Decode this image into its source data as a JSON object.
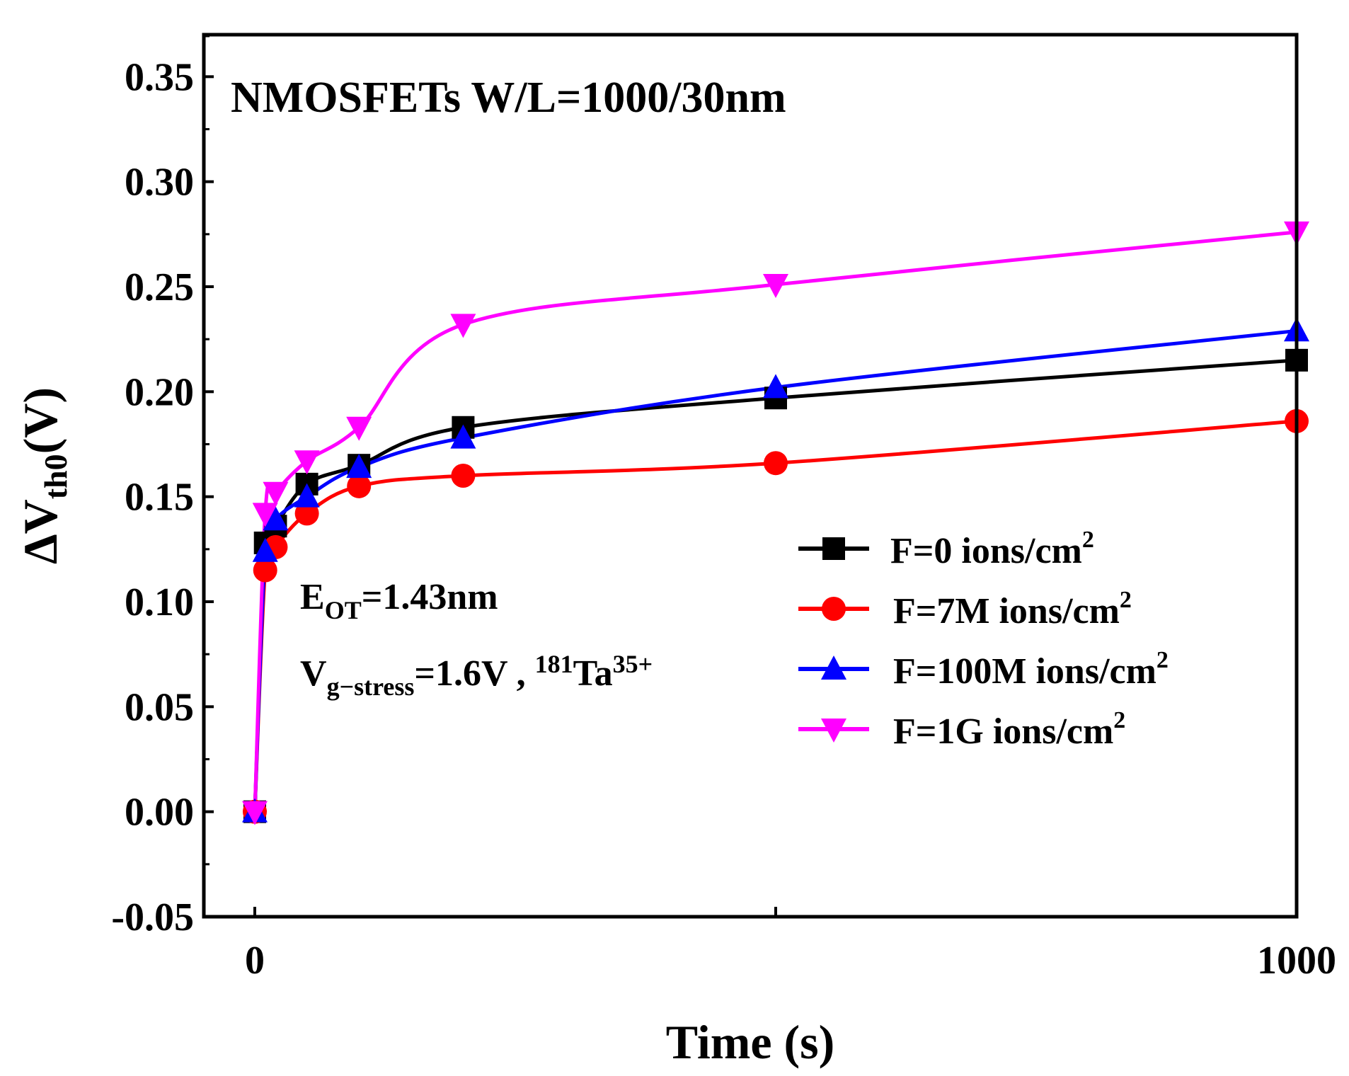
{
  "chart_data": {
    "type": "line",
    "title": "NMOSFETs W/L=1000/30nm",
    "xlabel": "Time (s)",
    "ylabel": {
      "main": "ΔV",
      "sub": "th0",
      "unit": "(V)"
    },
    "xlim": [
      -50,
      1000
    ],
    "ylim": [
      -0.05,
      0.37
    ],
    "x_ticks": [
      0,
      500,
      1000
    ],
    "x_tick_labels": [
      "0",
      "",
      "1000"
    ],
    "y_ticks": [
      -0.05,
      0.0,
      0.05,
      0.1,
      0.15,
      0.2,
      0.25,
      0.3,
      0.35
    ],
    "y_tick_labels": [
      "-0.05",
      "0.00",
      "0.05",
      "0.10",
      "0.15",
      "0.20",
      "0.25",
      "0.30",
      "0.35"
    ],
    "x": [
      0,
      10,
      20,
      50,
      100,
      200,
      500,
      1000
    ],
    "series": [
      {
        "name": "F=0 ions/cm",
        "sup": "2",
        "color": "#000000",
        "marker": "square",
        "values": [
          0,
          0.128,
          0.136,
          0.156,
          0.165,
          0.183,
          0.197,
          0.215
        ]
      },
      {
        "name": "F=7M ions/cm",
        "sup": "2",
        "color": "#ff0000",
        "marker": "circle",
        "values": [
          0,
          0.115,
          0.126,
          0.142,
          0.155,
          0.16,
          0.166,
          0.186
        ]
      },
      {
        "name": "F=100M ions/cm",
        "sup": "2",
        "color": "#0000ff",
        "marker": "triangle-up",
        "values": [
          0,
          0.124,
          0.139,
          0.15,
          0.164,
          0.178,
          0.202,
          0.229
        ]
      },
      {
        "name": "F=1G ions/cm",
        "sup": "2",
        "color": "#ff00ff",
        "marker": "triangle-down",
        "values": [
          0,
          0.142,
          0.152,
          0.167,
          0.183,
          0.232,
          0.251,
          0.276
        ]
      }
    ],
    "legend_position": "center-right",
    "annotations": [
      {
        "id": "eot",
        "main": "E",
        "sub": "OT",
        "rest": "=1.43nm"
      },
      {
        "id": "vg",
        "main": "V",
        "sub": "g−stress",
        "rest": "=1.6V , ",
        "sup_pre": "181",
        "element": "Ta",
        "sup_post": "35+"
      }
    ]
  }
}
